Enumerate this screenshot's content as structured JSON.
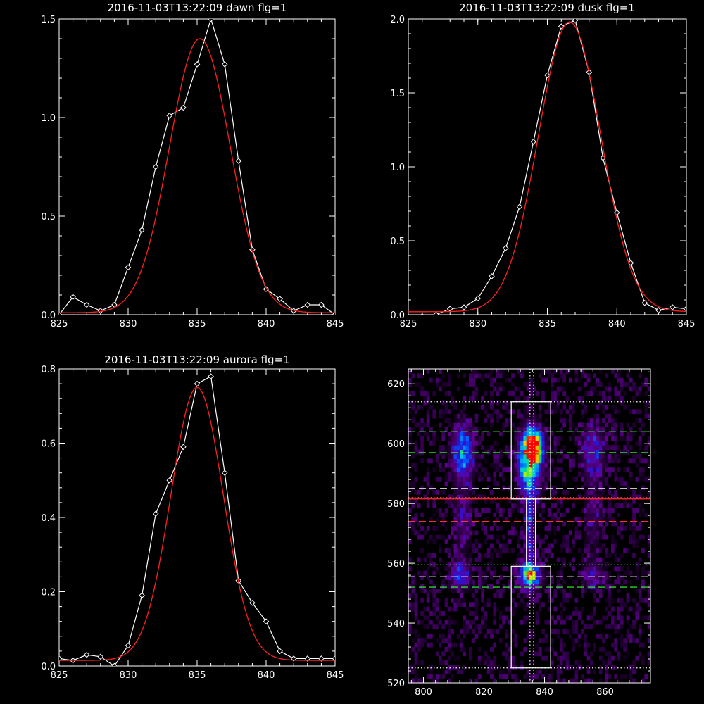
{
  "chart_data": [
    {
      "type": "line",
      "title": "2016-11-03T13:22:09 dawn flg=1",
      "xlim": [
        825,
        845
      ],
      "ylim": [
        0,
        1.5
      ],
      "xticks": [
        "825",
        "830",
        "835",
        "840",
        "845"
      ],
      "yticks": [
        "0.0",
        "0.5",
        "1.0",
        "1.5"
      ],
      "series": [
        {
          "role": "data",
          "color": "#ffffff",
          "marker": "diamond",
          "x": [
            825,
            826,
            827,
            828,
            829,
            830,
            831,
            832,
            833,
            834,
            835,
            836,
            837,
            838,
            839,
            840,
            841,
            842,
            843,
            844,
            845
          ],
          "y": [
            0.0,
            0.09,
            0.05,
            0.02,
            0.05,
            0.24,
            0.43,
            0.75,
            1.01,
            1.05,
            1.27,
            1.5,
            1.27,
            0.78,
            0.33,
            0.13,
            0.08,
            0.02,
            0.05,
            0.05,
            0.0
          ]
        },
        {
          "role": "fit",
          "color": "#ff2020",
          "curve": "gaussian",
          "center": 835.2,
          "amplitude": 1.39,
          "sigma": 2.2,
          "baseline": 0.01
        }
      ]
    },
    {
      "type": "line",
      "title": "2016-11-03T13:22:09 dusk flg=1",
      "xlim": [
        825,
        845
      ],
      "ylim": [
        0,
        2.0
      ],
      "xticks": [
        "825",
        "830",
        "835",
        "840",
        "845"
      ],
      "yticks": [
        "0.0",
        "0.5",
        "1.0",
        "1.5",
        "2.0"
      ],
      "series": [
        {
          "role": "data",
          "color": "#ffffff",
          "marker": "diamond",
          "x": [
            826,
            827,
            828,
            829,
            830,
            831,
            832,
            833,
            834,
            835,
            836,
            837,
            838,
            839,
            840,
            841,
            842,
            843,
            844,
            845
          ],
          "y": [
            -0.01,
            0.0,
            0.04,
            0.05,
            0.11,
            0.26,
            0.45,
            0.73,
            1.17,
            1.62,
            1.95,
            1.99,
            1.64,
            1.06,
            0.69,
            0.35,
            0.08,
            0.03,
            0.05,
            0.04
          ]
        },
        {
          "role": "fit",
          "color": "#ff2020",
          "curve": "gaussian",
          "center": 836.6,
          "amplitude": 1.96,
          "sigma": 2.25,
          "baseline": 0.02
        }
      ]
    },
    {
      "type": "line",
      "title": "2016-11-03T13:22:09 aurora flg=1",
      "xlim": [
        825,
        845
      ],
      "ylim": [
        0,
        0.8
      ],
      "xticks": [
        "825",
        "830",
        "835",
        "840",
        "845"
      ],
      "yticks": [
        "0.0",
        "0.2",
        "0.4",
        "0.6",
        "0.8"
      ],
      "series": [
        {
          "role": "data",
          "color": "#ffffff",
          "marker": "diamond",
          "x": [
            825,
            826,
            827,
            828,
            829,
            830,
            831,
            832,
            833,
            834,
            835,
            836,
            837,
            838,
            839,
            840,
            841,
            842,
            843,
            844,
            845
          ],
          "y": [
            0.02,
            0.015,
            0.03,
            0.025,
            0.0,
            0.055,
            0.19,
            0.41,
            0.5,
            0.59,
            0.76,
            0.78,
            0.52,
            0.23,
            0.17,
            0.12,
            0.04,
            0.02,
            0.02,
            0.02,
            0.02
          ]
        },
        {
          "role": "fit",
          "color": "#ff2020",
          "curve": "gaussian",
          "center": 835.0,
          "amplitude": 0.735,
          "sigma": 1.9,
          "baseline": 0.015
        }
      ]
    },
    {
      "type": "heatmap",
      "title": "",
      "xlim": [
        795,
        875
      ],
      "ylim": [
        520,
        625
      ],
      "xticks": [
        "800",
        "820",
        "840",
        "860"
      ],
      "yticks": [
        "520",
        "540",
        "560",
        "580",
        "600",
        "620"
      ],
      "colormap": "rainbow",
      "blobs": [
        {
          "x": 836,
          "y": 599,
          "sx": 2.2,
          "sy": 4,
          "amp": 1.0
        },
        {
          "x": 835,
          "y": 592,
          "sx": 2.6,
          "sy": 7,
          "amp": 0.55
        },
        {
          "x": 835,
          "y": 556,
          "sx": 2.4,
          "sy": 3,
          "amp": 0.75
        },
        {
          "x": 835,
          "y": 572,
          "sx": 1.0,
          "sy": 10,
          "amp": 0.35
        },
        {
          "x": 813,
          "y": 597,
          "sx": 2.4,
          "sy": 6,
          "amp": 0.5
        },
        {
          "x": 812,
          "y": 556,
          "sx": 2.2,
          "sy": 3,
          "amp": 0.4
        },
        {
          "x": 856,
          "y": 597,
          "sx": 2.6,
          "sy": 6,
          "amp": 0.3
        },
        {
          "x": 856,
          "y": 556,
          "sx": 2.4,
          "sy": 3,
          "amp": 0.25
        },
        {
          "x": 813,
          "y": 575,
          "sx": 2.0,
          "sy": 8,
          "amp": 0.18
        },
        {
          "x": 856,
          "y": 575,
          "sx": 2.0,
          "sy": 8,
          "amp": 0.14
        }
      ],
      "boxes": [
        {
          "x0": 829,
          "x1": 842,
          "y0": 581.5,
          "y1": 614,
          "color": "#ffffff"
        },
        {
          "x0": 829,
          "x1": 842,
          "y0": 525,
          "y1": 559,
          "color": "#ffffff"
        },
        {
          "x0": 834,
          "x1": 837,
          "y0": 559,
          "y1": 581.5,
          "color": "#ffffff"
        }
      ],
      "hlines": [
        {
          "y": 614,
          "color": "#ffffff",
          "style": "dotted"
        },
        {
          "y": 604,
          "color": "#33ff33",
          "style": "dashed"
        },
        {
          "y": 597,
          "color": "#33ff33",
          "style": "dashed"
        },
        {
          "y": 585,
          "color": "#ffffff",
          "style": "dashed"
        },
        {
          "y": 582,
          "color": "#ff3030",
          "style": "dotted"
        },
        {
          "y": 581.5,
          "color": "#ff3030",
          "style": "solid"
        },
        {
          "y": 574,
          "color": "#ff3030",
          "style": "dashed"
        },
        {
          "y": 559.5,
          "color": "#33ff33",
          "style": "dotted"
        },
        {
          "y": 555.5,
          "color": "#ffffff",
          "style": "dashed"
        },
        {
          "y": 552,
          "color": "#33ff33",
          "style": "dashed"
        },
        {
          "y": 525,
          "color": "#ffffff",
          "style": "dotted"
        }
      ],
      "vlines": [
        {
          "x": 835.2,
          "color": "#ffffff",
          "style": "dotted"
        },
        {
          "x": 836.4,
          "color": "#ffffff",
          "style": "dotted"
        }
      ]
    }
  ]
}
